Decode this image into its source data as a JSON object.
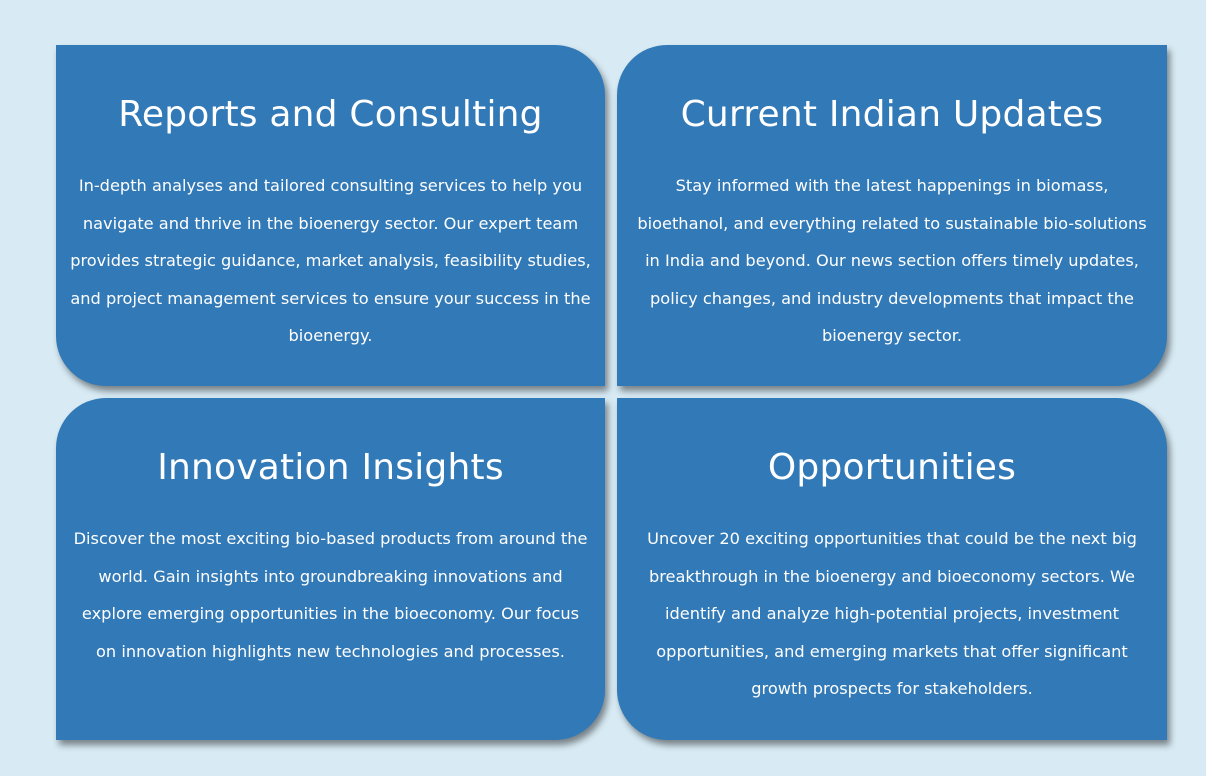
{
  "cards": [
    {
      "title": "Reports and Consulting",
      "body": "In-depth analyses and tailored consulting services to help you navigate and thrive in the bioenergy sector. Our expert team provides strategic guidance, market analysis, feasibility studies, and project management services to ensure your success in the bioenergy."
    },
    {
      "title": "Current Indian Updates",
      "body": "Stay informed with the latest happenings in biomass, bioethanol, and everything related to sustainable bio-solutions in India and beyond. Our news section offers timely updates, policy changes, and industry developments that impact the bioenergy sector."
    },
    {
      "title": "Innovation Insights",
      "body": "Discover the most exciting bio-based products from around the world. Gain insights into groundbreaking innovations and explore emerging opportunities in the bioeconomy. Our focus on innovation highlights new technologies and processes."
    },
    {
      "title": "Opportunities",
      "body": "Uncover 20 exciting opportunities that could be the next big breakthrough in the bioenergy and bioeconomy sectors. We identify and analyze high-potential projects, investment opportunities, and emerging markets that offer significant growth prospects for stakeholders."
    }
  ],
  "colors": {
    "page_background": "#d8ebf5",
    "card_background": "#3279b7",
    "text": "#ffffff"
  }
}
